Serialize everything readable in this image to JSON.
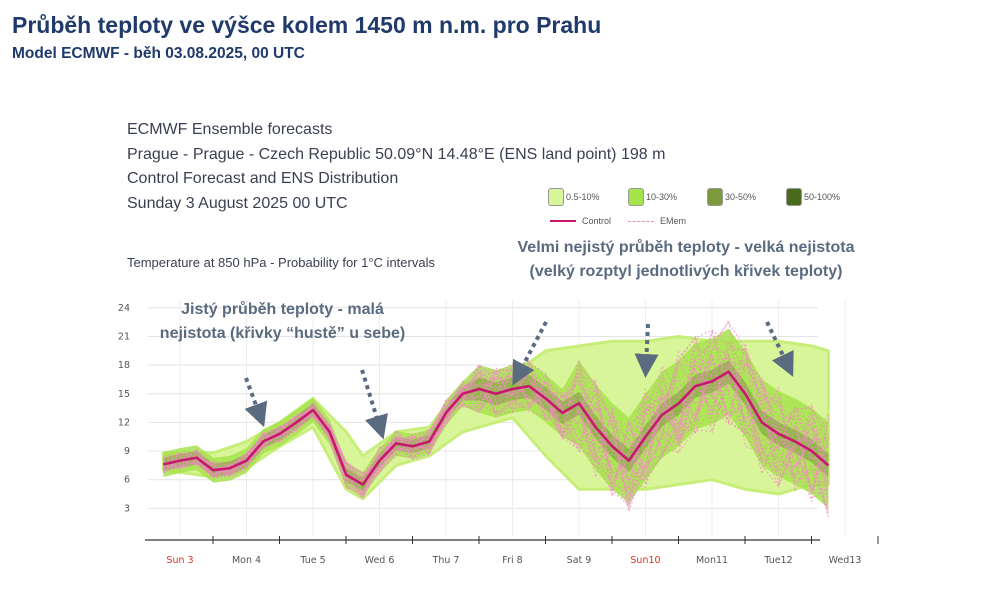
{
  "page": {
    "title": "Průběh teploty ve výšce kolem 1450 m n.m. pro Prahu",
    "subtitle": "Model ECMWF - běh 03.08.2025, 00 UTC"
  },
  "forecast_header": {
    "line1": "ECMWF Ensemble forecasts",
    "line2": "Prague - Prague - Czech Republic 50.09°N 14.48°E (ENS land point) 198 m",
    "line3": "Control Forecast and ENS Distribution",
    "line4": "Sunday 3 August 2025 00 UTC"
  },
  "legend": {
    "items": [
      {
        "label": "0.5-10%",
        "color": "#d9f59a"
      },
      {
        "label": "10-30%",
        "color": "#a4e34a"
      },
      {
        "label": "30-50%",
        "color": "#7b9a3c"
      },
      {
        "label": "50-100%",
        "color": "#4a6a1e"
      }
    ],
    "control_label": "Control",
    "control_color": "#c8186e",
    "emem_label": "EMem",
    "emem_color": "#f08cc0"
  },
  "annotations": {
    "certain": "Jistý průběh teploty - malá nejistota (křivky “hustě” u sebe)",
    "uncertain": "Velmi nejistý průběh teploty - velká nejistota (velký rozptyl jednotlivých křivek teploty)"
  },
  "chart_data": {
    "type": "line",
    "title": "Temperature at 850 hPa - Probability for 1°C intervals",
    "xlabel": "",
    "ylabel": "",
    "ylim": [
      0,
      25
    ],
    "y_ticks": [
      3,
      6,
      9,
      12,
      15,
      18,
      21,
      24
    ],
    "grid": true,
    "legend_position": "top-right",
    "x_labels": [
      {
        "label": "Sun 3",
        "day": 0,
        "red": true
      },
      {
        "label": "Mon 4",
        "day": 1,
        "red": false
      },
      {
        "label": "Tue 5",
        "day": 2,
        "red": false
      },
      {
        "label": "Wed 6",
        "day": 3,
        "red": false
      },
      {
        "label": "Thu 7",
        "day": 4,
        "red": false
      },
      {
        "label": "Fri 8",
        "day": 5,
        "red": false
      },
      {
        "label": "Sat 9",
        "day": 6,
        "red": false
      },
      {
        "label": "Sun10",
        "day": 7,
        "red": true
      },
      {
        "label": "Mon11",
        "day": 8,
        "red": false
      },
      {
        "label": "Tue12",
        "day": 9,
        "red": false
      },
      {
        "label": "Wed13",
        "day": 10,
        "red": false
      }
    ],
    "control": {
      "name": "Control",
      "x_days": [
        -0.25,
        0,
        0.25,
        0.5,
        0.75,
        1,
        1.25,
        1.5,
        1.75,
        2,
        2.25,
        2.5,
        2.75,
        3,
        3.25,
        3.5,
        3.75,
        4,
        4.25,
        4.5,
        4.75,
        5,
        5.25,
        5.5,
        5.75,
        6,
        6.25,
        6.5,
        6.75,
        7,
        7.25,
        7.5,
        7.75,
        8,
        8.25,
        8.5,
        8.75,
        9,
        9.25,
        9.5,
        9.75
      ],
      "values": [
        7.6,
        8.0,
        8.3,
        7.0,
        7.2,
        8.0,
        10.0,
        10.8,
        12.0,
        13.3,
        11.0,
        6.5,
        5.5,
        8.0,
        9.8,
        9.5,
        10.0,
        13.0,
        15.0,
        15.5,
        15.0,
        15.5,
        15.8,
        14.5,
        13.0,
        14.0,
        11.5,
        9.5,
        8.0,
        10.5,
        12.8,
        14.0,
        15.8,
        16.3,
        17.3,
        15.0,
        12.0,
        10.8,
        10.0,
        9.0,
        7.5
      ]
    },
    "ensemble_spread": {
      "x_days": [
        -0.25,
        0.5,
        1,
        1.5,
        2,
        2.5,
        2.75,
        3.25,
        3.75,
        4.25,
        5,
        5.5,
        6,
        6.5,
        7,
        7.5,
        8,
        8.5,
        9,
        9.5,
        9.75
      ],
      "low": [
        7.0,
        6.3,
        7.2,
        9.5,
        11.5,
        5.0,
        4.0,
        7.5,
        8.5,
        11.0,
        12.5,
        8.5,
        5.0,
        5.0,
        5.0,
        5.5,
        6.0,
        5.0,
        4.5,
        5.5,
        5.5
      ],
      "high": [
        8.8,
        8.8,
        10.0,
        12.0,
        14.5,
        11.0,
        8.5,
        11.0,
        11.5,
        16.0,
        17.0,
        19.5,
        20.0,
        20.5,
        20.5,
        21.0,
        20.5,
        20.5,
        20.5,
        20.0,
        19.5
      ]
    }
  }
}
